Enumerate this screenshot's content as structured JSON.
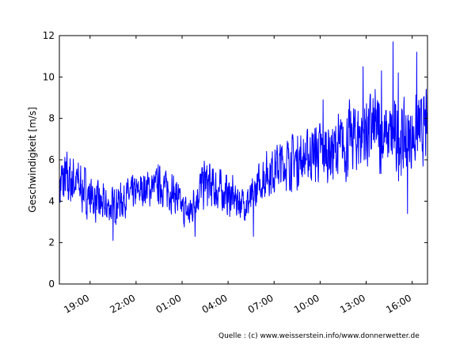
{
  "chart_data": {
    "type": "line",
    "title": "",
    "xlabel": "",
    "ylabel": "Geschwindigkeit [m/s]",
    "ylim": [
      0,
      12
    ],
    "y_ticks": [
      "0",
      "2",
      "4",
      "6",
      "8",
      "10",
      "12"
    ],
    "x_tick_labels": [
      "19:00",
      "22:00",
      "01:00",
      "04:00",
      "07:00",
      "10:00",
      "13:00",
      "16:00"
    ],
    "x_range_hours": [
      17.0,
      41.0
    ],
    "grid": false,
    "series": [
      {
        "color": "#0000ff",
        "x_hours": [
          17.0,
          17.5,
          18.0,
          18.5,
          19.0,
          19.5,
          20.0,
          20.5,
          21.0,
          21.5,
          22.0,
          22.5,
          23.0,
          23.5,
          24.0,
          24.5,
          25.0,
          25.5,
          26.0,
          26.5,
          27.0,
          27.5,
          28.0,
          28.5,
          29.0,
          29.5,
          30.0,
          30.5,
          31.0,
          31.5,
          32.0,
          32.5,
          33.0,
          33.5,
          34.0,
          34.5,
          35.0,
          35.5,
          36.0,
          36.5,
          37.0,
          37.5,
          38.0,
          38.5,
          39.0,
          39.5,
          40.0,
          40.5,
          41.0
        ],
        "values": [
          4.8,
          5.0,
          5.0,
          4.6,
          4.3,
          3.9,
          3.7,
          3.8,
          4.0,
          4.3,
          4.4,
          4.6,
          4.7,
          4.8,
          4.6,
          4.4,
          3.6,
          3.4,
          4.4,
          4.9,
          4.6,
          4.5,
          4.3,
          4.1,
          3.9,
          4.0,
          4.8,
          5.3,
          5.6,
          5.8,
          5.9,
          6.0,
          6.1,
          6.3,
          6.4,
          6.4,
          6.5,
          6.6,
          7.0,
          7.2,
          7.4,
          7.4,
          7.3,
          7.1,
          6.9,
          7.0,
          7.1,
          7.4,
          7.6
        ],
        "fluctuation_amplitude": [
          1.4,
          1.4,
          1.3,
          1.2,
          1.1,
          1.0,
          0.9,
          0.9,
          0.9,
          0.8,
          0.8,
          0.8,
          0.9,
          0.9,
          0.9,
          1.0,
          0.8,
          0.8,
          1.1,
          1.2,
          1.1,
          1.0,
          1.0,
          0.9,
          0.8,
          0.9,
          1.0,
          1.1,
          1.2,
          1.2,
          1.3,
          1.3,
          1.3,
          1.4,
          1.5,
          1.5,
          1.6,
          1.7,
          1.8,
          1.9,
          2.0,
          2.0,
          2.0,
          1.8,
          1.8,
          1.7,
          1.7,
          1.6,
          1.6
        ],
        "peaks": [
          {
            "x_hours": 20.5,
            "value": 2.1
          },
          {
            "x_hours": 25.85,
            "value": 2.3
          },
          {
            "x_hours": 29.65,
            "value": 2.3
          },
          {
            "x_hours": 34.2,
            "value": 8.9
          },
          {
            "x_hours": 36.8,
            "value": 10.5
          },
          {
            "x_hours": 38.0,
            "value": 10.3
          },
          {
            "x_hours": 38.75,
            "value": 11.7
          },
          {
            "x_hours": 39.1,
            "value": 10.2
          },
          {
            "x_hours": 40.3,
            "value": 11.2
          },
          {
            "x_hours": 39.7,
            "value": 3.4
          }
        ]
      }
    ]
  },
  "source_note": "Quelle : (c) www.weisserstein.info/www.donnerwetter.de"
}
